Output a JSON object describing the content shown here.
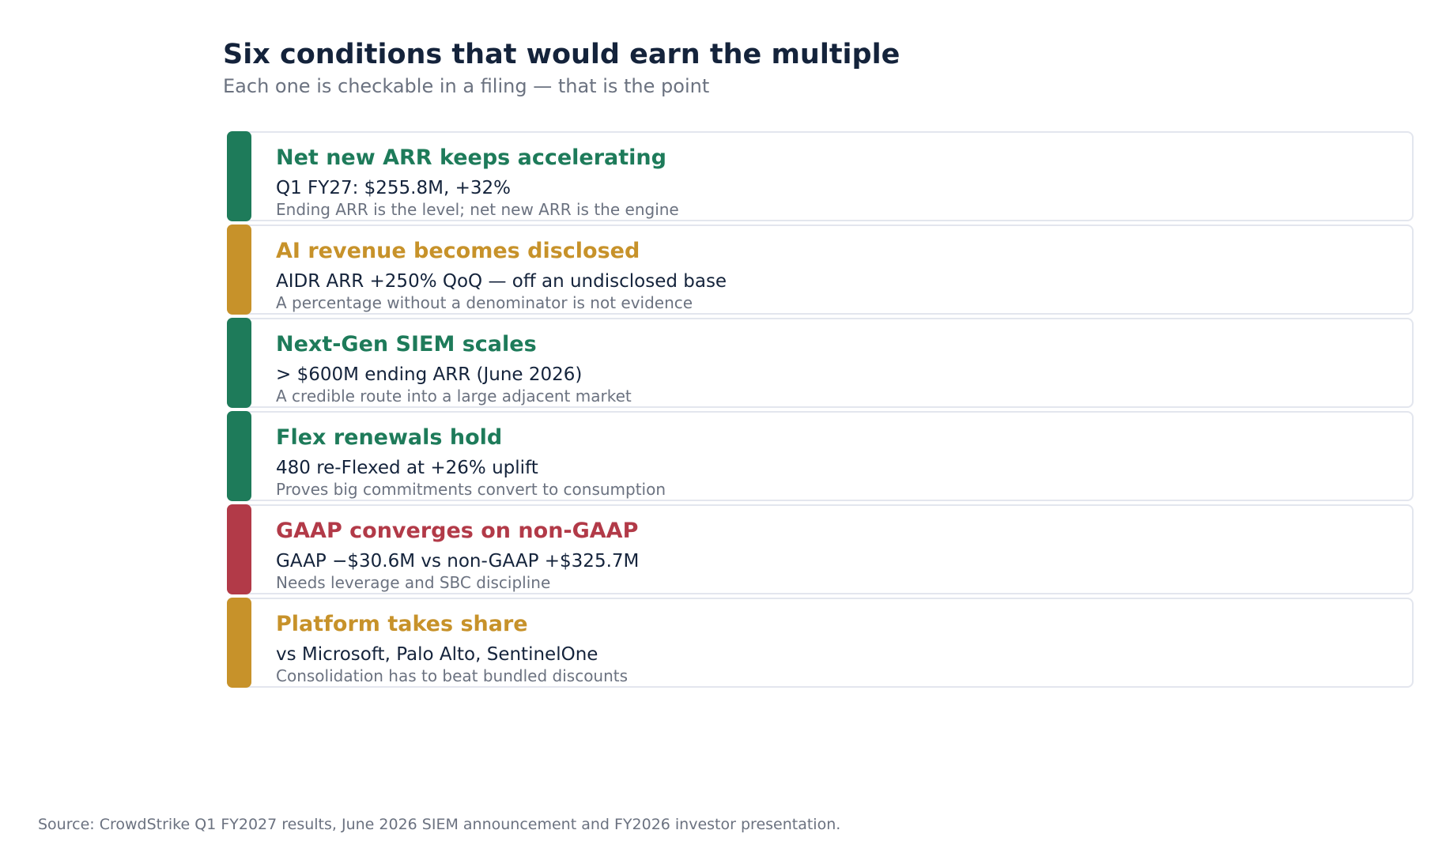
{
  "header": {
    "title": "Six conditions that would earn the multiple",
    "subtitle": "Each one is checkable in a filing — that is the point"
  },
  "colors": {
    "green": "#1e7b5a",
    "amber": "#c7922a",
    "red": "#b23a48"
  },
  "conditions": [
    {
      "title": "Net new ARR keeps accelerating",
      "metric": "Q1 FY27: $255.8M, +32%",
      "note": "Ending ARR is the level; net new ARR is the engine",
      "status": "green",
      "color": "#1e7b5a"
    },
    {
      "title": "AI revenue becomes disclosed",
      "metric": "AIDR ARR +250% QoQ — off an undisclosed base",
      "note": "A percentage without a denominator is not evidence",
      "status": "amber",
      "color": "#c7922a"
    },
    {
      "title": "Next-Gen SIEM scales",
      "metric": "> $600M ending ARR (June 2026)",
      "note": "A credible route into a large adjacent market",
      "status": "green",
      "color": "#1e7b5a"
    },
    {
      "title": "Flex renewals hold",
      "metric": "480 re-Flexed at +26% uplift",
      "note": "Proves big commitments convert to consumption",
      "status": "green",
      "color": "#1e7b5a"
    },
    {
      "title": "GAAP converges on non-GAAP",
      "metric": "GAAP −$30.6M vs non-GAAP +$325.7M",
      "note": "Needs leverage and SBC discipline",
      "status": "red",
      "color": "#b23a48"
    },
    {
      "title": "Platform takes share",
      "metric": "vs Microsoft, Palo Alto, SentinelOne",
      "note": "Consolidation has to beat bundled discounts",
      "status": "amber",
      "color": "#c7922a"
    }
  ],
  "footer": {
    "source": "Source: CrowdStrike Q1 FY2027 results, June 2026 SIEM announcement and FY2026 investor presentation."
  }
}
